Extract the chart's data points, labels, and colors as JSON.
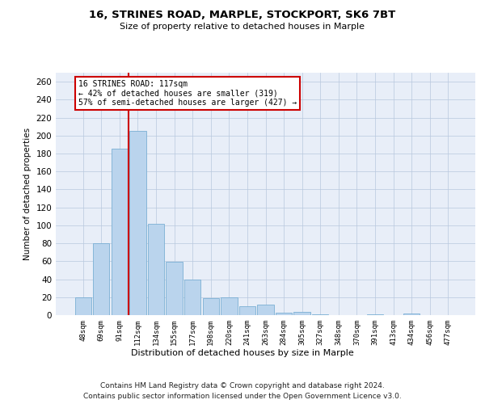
{
  "title1": "16, STRINES ROAD, MARPLE, STOCKPORT, SK6 7BT",
  "title2": "Size of property relative to detached houses in Marple",
  "xlabel": "Distribution of detached houses by size in Marple",
  "ylabel": "Number of detached properties",
  "bar_labels": [
    "48sqm",
    "69sqm",
    "91sqm",
    "112sqm",
    "134sqm",
    "155sqm",
    "177sqm",
    "198sqm",
    "220sqm",
    "241sqm",
    "263sqm",
    "284sqm",
    "305sqm",
    "327sqm",
    "348sqm",
    "370sqm",
    "391sqm",
    "413sqm",
    "434sqm",
    "456sqm",
    "477sqm"
  ],
  "bar_values": [
    20,
    80,
    185,
    205,
    102,
    59,
    40,
    19,
    20,
    10,
    12,
    3,
    4,
    1,
    0,
    0,
    1,
    0,
    2,
    0,
    0
  ],
  "bar_color": "#bad4ed",
  "bar_edgecolor": "#7aafd4",
  "vline_x": 2.5,
  "vline_color": "#cc0000",
  "annotation_line1": "16 STRINES ROAD: 117sqm",
  "annotation_line2": "← 42% of detached houses are smaller (319)",
  "annotation_line3": "57% of semi-detached houses are larger (427) →",
  "annotation_box_color": "#ffffff",
  "annotation_box_edgecolor": "#cc0000",
  "ylim": [
    0,
    270
  ],
  "yticks": [
    0,
    20,
    40,
    60,
    80,
    100,
    120,
    140,
    160,
    180,
    200,
    220,
    240,
    260
  ],
  "footer1": "Contains HM Land Registry data © Crown copyright and database right 2024.",
  "footer2": "Contains public sector information licensed under the Open Government Licence v3.0.",
  "bg_color": "#e8eef8",
  "plot_bg_color": "#e8eef8"
}
